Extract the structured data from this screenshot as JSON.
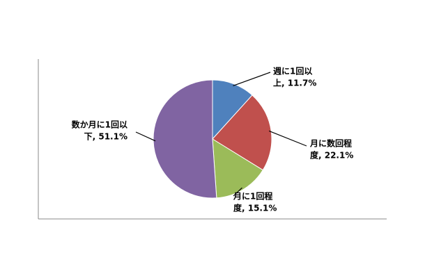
{
  "chart_data": {
    "type": "pie",
    "values": [
      11.7,
      22.1,
      15.1,
      51.1
    ],
    "value_labels": [
      [
        "週に1回以",
        "上, 11.7%"
      ],
      [
        "月に数回程",
        "度, 22.1%"
      ],
      [
        "月に1回程",
        "度, 15.1%"
      ],
      [
        "数か月に1回以",
        "下, 51.1%"
      ]
    ],
    "colors": [
      "#4f81bd",
      "#c0504d",
      "#9bbb59",
      "#8064a2"
    ]
  }
}
